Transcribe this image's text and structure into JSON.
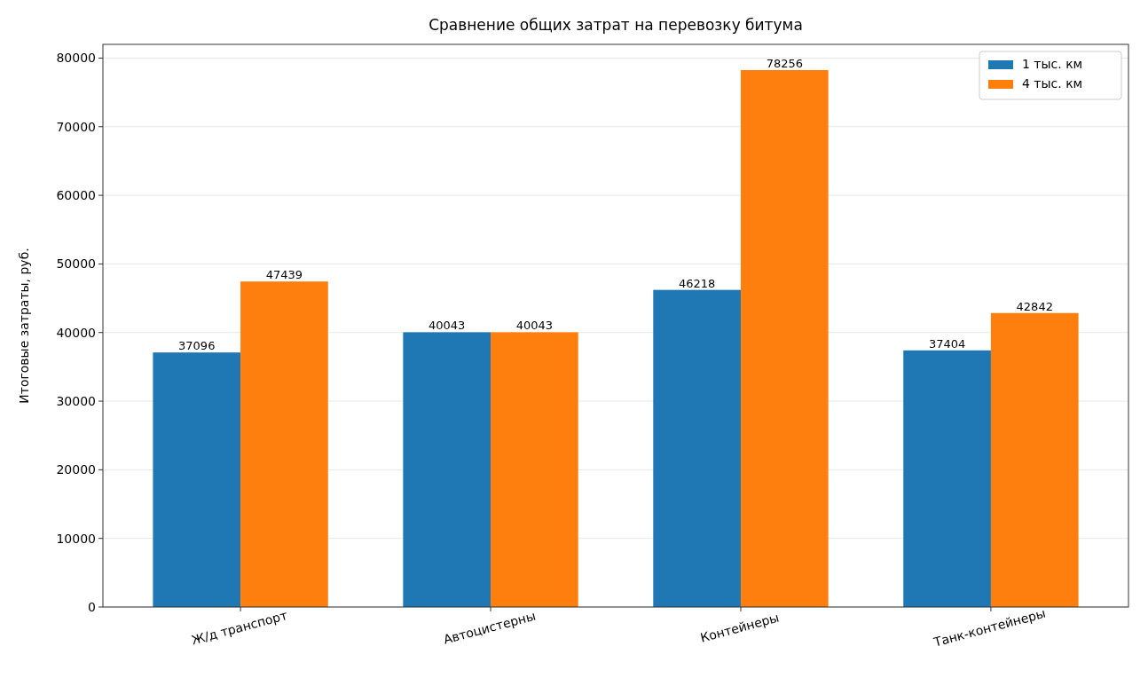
{
  "chart_data": {
    "type": "bar",
    "title": "Сравнение общих затрат на перевозку битума",
    "ylabel": "Итоговые затраты, руб.",
    "categories": [
      "Ж/д транспорт",
      "Автоцистерны",
      "Контейнеры",
      "Танк-контейнеры"
    ],
    "series": [
      {
        "name": "1 тыс. км",
        "color": "#1f77b4",
        "values": [
          37096,
          40043,
          46218,
          37404
        ]
      },
      {
        "name": "4 тыс. км",
        "color": "#ff7f0e",
        "values": [
          47439,
          40043,
          78256,
          42842
        ]
      }
    ],
    "ylim": [
      0,
      82000
    ],
    "yticks": [
      0,
      10000,
      20000,
      30000,
      40000,
      50000,
      60000,
      70000,
      80000
    ],
    "grid": "y",
    "legend": "top right",
    "data_labels": true
  }
}
